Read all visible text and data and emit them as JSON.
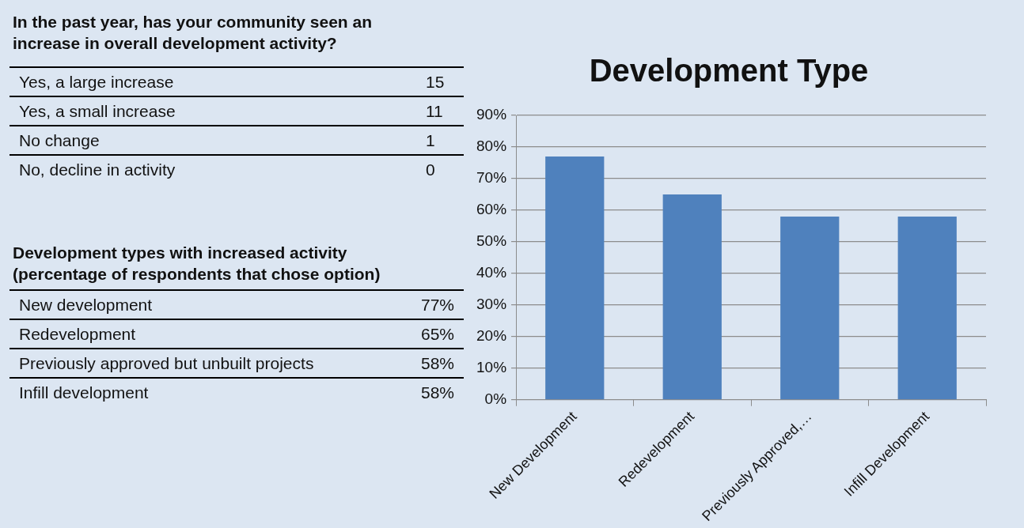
{
  "chart_data": [
    {
      "type": "other",
      "title": "In the past year, has your community seen an increase in overall development activity?",
      "categories": [
        "Yes, a large increase",
        "Yes, a small increase",
        "No change",
        "No, decline in activity"
      ],
      "values": [
        15,
        11,
        1,
        0
      ],
      "data_labels": true
    },
    {
      "type": "other",
      "title": "Development types with increased activity (percentage of respondents that chose option)",
      "categories": [
        "New development",
        "Redevelopment",
        "Previously approved but unbuilt projects",
        "Infill development"
      ],
      "value_labels": [
        "77%",
        "65%",
        "58%",
        "58%"
      ]
    },
    {
      "type": "bar",
      "title": "Development Type",
      "categories": [
        "New Development",
        "Redevelopment",
        "Previously Approved,…",
        "Infill Development"
      ],
      "values": [
        77,
        65,
        58,
        58
      ],
      "color": "#4f81bd",
      "ylim": [
        0,
        90
      ],
      "yticks": [
        {
          "value": 0,
          "label": "0%"
        },
        {
          "value": 10,
          "label": "10%"
        },
        {
          "value": 20,
          "label": "20%"
        },
        {
          "value": 30,
          "label": "30%"
        },
        {
          "value": 40,
          "label": "40%"
        },
        {
          "value": 50,
          "label": "50%"
        },
        {
          "value": 60,
          "label": "60%"
        },
        {
          "value": 70,
          "label": "70%"
        },
        {
          "value": 80,
          "label": "80%"
        },
        {
          "value": 90,
          "label": "90%"
        }
      ],
      "grid": "y",
      "legend": false
    }
  ]
}
